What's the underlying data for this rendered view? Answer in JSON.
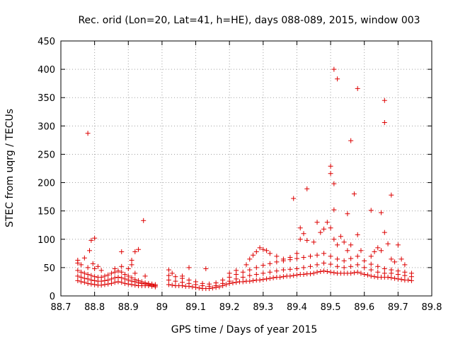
{
  "chart_data": {
    "type": "scatter",
    "title": "Rec. orid (Lon=20, Lat=41, h=HE), days 088-089, 2015, window 003",
    "xlabel": "GPS time / Days of year 2015",
    "ylabel": "STEC from uqrg / TECUs",
    "xlim": [
      88.7,
      89.8
    ],
    "ylim": [
      0,
      450
    ],
    "xticks": [
      "88.7",
      "88.8",
      "88.9",
      "89",
      "89.1",
      "89.2",
      "89.3",
      "89.4",
      "89.5",
      "89.6",
      "89.7",
      "89.8"
    ],
    "yticks": [
      "0",
      "50",
      "100",
      "150",
      "200",
      "250",
      "300",
      "350",
      "400",
      "450"
    ],
    "grid": true,
    "marker": "+",
    "color": "#dd0000",
    "points": [
      [
        88.75,
        27
      ],
      [
        88.76,
        25
      ],
      [
        88.77,
        24
      ],
      [
        88.78,
        22
      ],
      [
        88.79,
        21
      ],
      [
        88.8,
        20
      ],
      [
        88.81,
        19
      ],
      [
        88.82,
        19
      ],
      [
        88.83,
        20
      ],
      [
        88.84,
        21
      ],
      [
        88.85,
        22
      ],
      [
        88.86,
        24
      ],
      [
        88.87,
        25
      ],
      [
        88.88,
        24
      ],
      [
        88.89,
        22
      ],
      [
        88.9,
        21
      ],
      [
        88.91,
        20
      ],
      [
        88.92,
        19
      ],
      [
        88.93,
        18
      ],
      [
        88.94,
        18
      ],
      [
        88.95,
        18
      ],
      [
        88.96,
        18
      ],
      [
        88.97,
        17
      ],
      [
        88.98,
        16
      ],
      [
        88.75,
        35
      ],
      [
        88.76,
        33
      ],
      [
        88.77,
        31
      ],
      [
        88.78,
        30
      ],
      [
        88.79,
        28
      ],
      [
        88.8,
        27
      ],
      [
        88.81,
        26
      ],
      [
        88.82,
        26
      ],
      [
        88.83,
        27
      ],
      [
        88.84,
        28
      ],
      [
        88.85,
        30
      ],
      [
        88.86,
        32
      ],
      [
        88.87,
        33
      ],
      [
        88.88,
        32
      ],
      [
        88.89,
        30
      ],
      [
        88.9,
        28
      ],
      [
        88.91,
        26
      ],
      [
        88.92,
        25
      ],
      [
        88.93,
        23
      ],
      [
        88.94,
        22
      ],
      [
        88.95,
        21
      ],
      [
        88.96,
        20
      ],
      [
        88.97,
        19
      ],
      [
        88.98,
        18
      ],
      [
        88.75,
        45
      ],
      [
        88.76,
        42
      ],
      [
        88.77,
        40
      ],
      [
        88.78,
        38
      ],
      [
        88.79,
        36
      ],
      [
        88.8,
        34
      ],
      [
        88.81,
        33
      ],
      [
        88.82,
        33
      ],
      [
        88.83,
        35
      ],
      [
        88.84,
        37
      ],
      [
        88.85,
        40
      ],
      [
        88.86,
        42
      ],
      [
        88.87,
        44
      ],
      [
        88.88,
        42
      ],
      [
        88.89,
        38
      ],
      [
        88.9,
        35
      ],
      [
        88.91,
        32
      ],
      [
        88.92,
        29
      ],
      [
        88.93,
        27
      ],
      [
        88.94,
        25
      ],
      [
        88.95,
        23
      ],
      [
        88.96,
        22
      ],
      [
        88.97,
        21
      ],
      [
        88.98,
        20
      ],
      [
        88.75,
        58
      ],
      [
        88.76,
        55
      ],
      [
        88.78,
        50
      ],
      [
        88.8,
        48
      ],
      [
        88.82,
        45
      ],
      [
        88.86,
        48
      ],
      [
        88.88,
        52
      ],
      [
        88.9,
        48
      ],
      [
        88.92,
        40
      ],
      [
        88.95,
        35
      ],
      [
        88.75,
        63
      ],
      [
        88.77,
        67
      ],
      [
        88.785,
        80
      ],
      [
        88.79,
        98
      ],
      [
        88.8,
        102
      ],
      [
        88.78,
        287
      ],
      [
        88.795,
        57
      ],
      [
        88.81,
        52
      ],
      [
        88.88,
        78
      ],
      [
        88.91,
        63
      ],
      [
        88.92,
        78
      ],
      [
        88.93,
        82
      ],
      [
        88.945,
        133
      ],
      [
        88.91,
        55
      ],
      [
        89.02,
        20
      ],
      [
        89.03,
        19
      ],
      [
        89.04,
        18
      ],
      [
        89.05,
        18
      ],
      [
        89.06,
        18
      ],
      [
        89.07,
        17
      ],
      [
        89.08,
        17
      ],
      [
        89.09,
        16
      ],
      [
        89.1,
        15
      ],
      [
        89.11,
        14
      ],
      [
        89.12,
        13
      ],
      [
        89.13,
        13
      ],
      [
        89.14,
        13
      ],
      [
        89.15,
        14
      ],
      [
        89.16,
        15
      ],
      [
        89.17,
        16
      ],
      [
        89.18,
        18
      ],
      [
        89.19,
        20
      ],
      [
        89.2,
        22
      ],
      [
        89.21,
        23
      ],
      [
        89.22,
        24
      ],
      [
        89.23,
        25
      ],
      [
        89.24,
        25
      ],
      [
        89.25,
        26
      ],
      [
        89.26,
        26
      ],
      [
        89.27,
        27
      ],
      [
        89.28,
        28
      ],
      [
        89.29,
        28
      ],
      [
        89.3,
        29
      ],
      [
        89.31,
        30
      ],
      [
        89.32,
        31
      ],
      [
        89.33,
        32
      ],
      [
        89.34,
        33
      ],
      [
        89.35,
        33
      ],
      [
        89.36,
        34
      ],
      [
        89.37,
        35
      ],
      [
        89.38,
        35
      ],
      [
        89.39,
        36
      ],
      [
        89.4,
        37
      ],
      [
        89.41,
        38
      ],
      [
        89.42,
        38
      ],
      [
        89.43,
        39
      ],
      [
        89.44,
        39
      ],
      [
        89.45,
        40
      ],
      [
        89.46,
        42
      ],
      [
        89.47,
        43
      ],
      [
        89.48,
        44
      ],
      [
        89.49,
        43
      ],
      [
        89.5,
        42
      ],
      [
        89.51,
        41
      ],
      [
        89.52,
        40
      ],
      [
        89.53,
        40
      ],
      [
        89.54,
        40
      ],
      [
        89.55,
        40
      ],
      [
        89.56,
        40
      ],
      [
        89.57,
        41
      ],
      [
        89.58,
        42
      ],
      [
        89.59,
        40
      ],
      [
        89.6,
        38
      ],
      [
        89.61,
        37
      ],
      [
        89.62,
        35
      ],
      [
        89.63,
        34
      ],
      [
        89.64,
        33
      ],
      [
        89.65,
        33
      ],
      [
        89.66,
        33
      ],
      [
        89.67,
        33
      ],
      [
        89.68,
        32
      ],
      [
        89.69,
        31
      ],
      [
        89.7,
        30
      ],
      [
        89.71,
        29
      ],
      [
        89.72,
        28
      ],
      [
        89.73,
        28
      ],
      [
        89.74,
        27
      ],
      [
        89.02,
        28
      ],
      [
        89.04,
        26
      ],
      [
        89.06,
        24
      ],
      [
        89.08,
        22
      ],
      [
        89.1,
        20
      ],
      [
        89.12,
        18
      ],
      [
        89.14,
        17
      ],
      [
        89.16,
        18
      ],
      [
        89.18,
        22
      ],
      [
        89.2,
        26
      ],
      [
        89.22,
        30
      ],
      [
        89.24,
        33
      ],
      [
        89.26,
        36
      ],
      [
        89.28,
        38
      ],
      [
        89.3,
        40
      ],
      [
        89.32,
        42
      ],
      [
        89.34,
        44
      ],
      [
        89.36,
        46
      ],
      [
        89.38,
        47
      ],
      [
        89.4,
        48
      ],
      [
        89.42,
        50
      ],
      [
        89.44,
        52
      ],
      [
        89.46,
        55
      ],
      [
        89.48,
        58
      ],
      [
        89.5,
        56
      ],
      [
        89.52,
        52
      ],
      [
        89.54,
        50
      ],
      [
        89.56,
        52
      ],
      [
        89.58,
        55
      ],
      [
        89.6,
        50
      ],
      [
        89.62,
        46
      ],
      [
        89.64,
        42
      ],
      [
        89.66,
        40
      ],
      [
        89.68,
        40
      ],
      [
        89.7,
        38
      ],
      [
        89.72,
        36
      ],
      [
        89.74,
        34
      ],
      [
        89.02,
        36
      ],
      [
        89.04,
        34
      ],
      [
        89.06,
        31
      ],
      [
        89.08,
        28
      ],
      [
        89.1,
        25
      ],
      [
        89.12,
        22
      ],
      [
        89.14,
        21
      ],
      [
        89.16,
        23
      ],
      [
        89.18,
        28
      ],
      [
        89.2,
        33
      ],
      [
        89.22,
        38
      ],
      [
        89.24,
        42
      ],
      [
        89.26,
        46
      ],
      [
        89.28,
        50
      ],
      [
        89.3,
        54
      ],
      [
        89.32,
        57
      ],
      [
        89.34,
        60
      ],
      [
        89.36,
        62
      ],
      [
        89.38,
        64
      ],
      [
        89.4,
        66
      ],
      [
        89.42,
        68
      ],
      [
        89.44,
        70
      ],
      [
        89.46,
        72
      ],
      [
        89.48,
        75
      ],
      [
        89.5,
        70
      ],
      [
        89.52,
        65
      ],
      [
        89.54,
        62
      ],
      [
        89.56,
        66
      ],
      [
        89.58,
        70
      ],
      [
        89.6,
        62
      ],
      [
        89.62,
        56
      ],
      [
        89.64,
        52
      ],
      [
        89.66,
        48
      ],
      [
        89.68,
        46
      ],
      [
        89.7,
        44
      ],
      [
        89.72,
        42
      ],
      [
        89.74,
        40
      ],
      [
        89.02,
        46
      ],
      [
        89.03,
        40
      ],
      [
        89.06,
        35
      ],
      [
        89.08,
        50
      ],
      [
        89.13,
        48
      ],
      [
        89.2,
        40
      ],
      [
        89.22,
        45
      ],
      [
        89.25,
        55
      ],
      [
        89.26,
        65
      ],
      [
        89.27,
        72
      ],
      [
        89.28,
        78
      ],
      [
        89.29,
        85
      ],
      [
        89.3,
        82
      ],
      [
        89.31,
        80
      ],
      [
        89.32,
        75
      ],
      [
        89.34,
        70
      ],
      [
        89.36,
        65
      ],
      [
        89.38,
        68
      ],
      [
        89.4,
        75
      ],
      [
        89.41,
        100
      ],
      [
        89.42,
        110
      ],
      [
        89.43,
        98
      ],
      [
        89.45,
        95
      ],
      [
        89.46,
        130
      ],
      [
        89.47,
        112
      ],
      [
        89.48,
        118
      ],
      [
        89.49,
        130
      ],
      [
        89.5,
        120
      ],
      [
        89.51,
        100
      ],
      [
        89.52,
        90
      ],
      [
        89.53,
        105
      ],
      [
        89.54,
        95
      ],
      [
        89.55,
        80
      ],
      [
        89.56,
        90
      ],
      [
        89.58,
        108
      ],
      [
        89.59,
        80
      ],
      [
        89.62,
        70
      ],
      [
        89.63,
        78
      ],
      [
        89.64,
        85
      ],
      [
        89.65,
        80
      ],
      [
        89.66,
        112
      ],
      [
        89.67,
        92
      ],
      [
        89.68,
        65
      ],
      [
        89.69,
        60
      ],
      [
        89.7,
        90
      ],
      [
        89.71,
        65
      ],
      [
        89.72,
        55
      ],
      [
        89.39,
        172
      ],
      [
        89.41,
        120
      ],
      [
        89.43,
        189
      ],
      [
        89.5,
        229
      ],
      [
        89.5,
        216
      ],
      [
        89.51,
        198
      ],
      [
        89.51,
        152
      ],
      [
        89.51,
        400
      ],
      [
        89.52,
        383
      ],
      [
        89.55,
        145
      ],
      [
        89.56,
        274
      ],
      [
        89.57,
        180
      ],
      [
        89.58,
        366
      ],
      [
        89.62,
        151
      ],
      [
        89.65,
        147
      ],
      [
        89.66,
        345
      ],
      [
        89.66,
        306
      ],
      [
        89.68,
        178
      ]
    ]
  }
}
